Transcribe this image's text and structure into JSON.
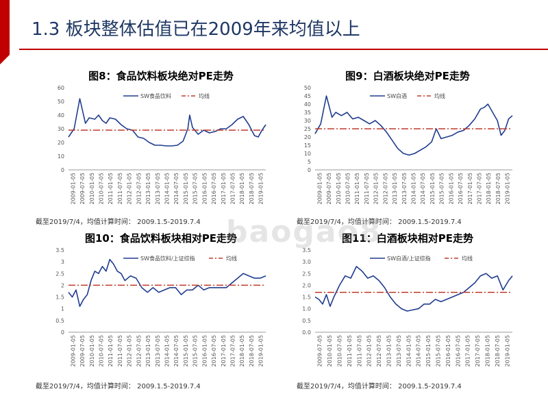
{
  "page": {
    "title": "1.3 板块整体估值已在2009年来均值以上",
    "watermark": "baogao8"
  },
  "chart_data": [
    {
      "type": "line",
      "title": "图8：食品饮料板块绝对PE走势",
      "note": "截至2019/7/4，均值计算时间：   2009.1.5-2019.7.4",
      "ylim": [
        0,
        60
      ],
      "yticks": [
        0,
        10,
        20,
        30,
        40,
        50,
        60
      ],
      "xlabels": [
        "2009-01-05",
        "2009-07-05",
        "2010-01-05",
        "2010-07-05",
        "2011-01-05",
        "2011-07-05",
        "2012-01-05",
        "2012-07-05",
        "2013-01-05",
        "2013-07-05",
        "2014-01-05",
        "2014-07-05",
        "2015-01-05",
        "2015-07-05",
        "2016-01-05",
        "2016-07-05",
        "2017-01-05",
        "2017-07-05",
        "2018-01-05",
        "2018-07-05",
        "2019-01-05"
      ],
      "legend": "top-center",
      "series": [
        {
          "name": "SW食品饮料",
          "x": [
            2009.0,
            2009.3,
            2009.6,
            2009.9,
            2010.1,
            2010.4,
            2010.6,
            2010.8,
            2011.0,
            2011.2,
            2011.5,
            2011.8,
            2012.1,
            2012.4,
            2012.7,
            2013.0,
            2013.3,
            2013.6,
            2013.9,
            2014.2,
            2014.5,
            2014.8,
            2015.1,
            2015.35,
            2015.45,
            2015.6,
            2015.9,
            2016.2,
            2016.5,
            2016.8,
            2017.1,
            2017.4,
            2017.7,
            2018.0,
            2018.3,
            2018.6,
            2018.9,
            2019.1,
            2019.3,
            2019.5
          ],
          "values": [
            24,
            30,
            52,
            34,
            38,
            37,
            40,
            36,
            34,
            38,
            37,
            33,
            30,
            29,
            24,
            23,
            20,
            18,
            18,
            17.5,
            17.5,
            18,
            21,
            30,
            40,
            31,
            26,
            29,
            27,
            28,
            30,
            30,
            33,
            37,
            39,
            33,
            25,
            24,
            29,
            33
          ]
        },
        {
          "name": "均线",
          "x": [
            2009.0,
            2019.5
          ],
          "values": [
            29,
            29
          ]
        }
      ]
    },
    {
      "type": "line",
      "title": "图9：白酒板块绝对PE走势",
      "note": "截至2019/7/4，均值计算时间：   2009.1.5-2019.7.4",
      "ylim": [
        0,
        50
      ],
      "yticks": [
        0,
        5,
        10,
        15,
        20,
        25,
        30,
        35,
        40,
        45,
        50
      ],
      "xlabels": [
        "2009-01-05",
        "2009-07-05",
        "2010-01-05",
        "2010-07-05",
        "2011-01-05",
        "2011-07-05",
        "2012-01-05",
        "2012-07-05",
        "2013-01-05",
        "2013-07-05",
        "2014-01-05",
        "2014-07-05",
        "2015-01-05",
        "2015-07-05",
        "2016-01-05",
        "2016-07-05",
        "2017-01-05",
        "2017-07-05",
        "2018-01-05",
        "2018-07-05",
        "2019-01-05"
      ],
      "legend": "top-center",
      "series": [
        {
          "name": "SW白酒",
          "x": [
            2009.0,
            2009.3,
            2009.6,
            2009.9,
            2010.1,
            2010.4,
            2010.7,
            2011.0,
            2011.3,
            2011.6,
            2011.9,
            2012.2,
            2012.5,
            2012.8,
            2013.1,
            2013.4,
            2013.7,
            2014.0,
            2014.3,
            2014.6,
            2014.9,
            2015.2,
            2015.45,
            2015.7,
            2016.0,
            2016.3,
            2016.6,
            2016.9,
            2017.2,
            2017.5,
            2017.8,
            2018.0,
            2018.2,
            2018.4,
            2018.7,
            2018.9,
            2019.1,
            2019.3,
            2019.5
          ],
          "values": [
            22,
            28,
            45,
            32,
            35,
            33,
            35,
            31,
            32,
            30,
            28,
            30,
            27,
            23,
            18,
            13,
            10,
            9,
            10,
            12,
            14,
            17,
            25,
            19,
            20,
            21,
            23,
            24,
            27,
            31,
            37,
            38,
            40,
            36,
            30,
            21,
            24,
            31,
            33
          ]
        },
        {
          "name": "均线",
          "x": [
            2009.0,
            2019.5
          ],
          "values": [
            25,
            25
          ]
        }
      ]
    },
    {
      "type": "line",
      "title": "图10：食品饮料板块相对PE走势",
      "note": "截至2019/7/4，均值计算时间：   2009.1.5-2019.7.4",
      "ylim": [
        0,
        3.5
      ],
      "yticks": [
        0,
        0.5,
        1,
        1.5,
        2,
        2.5,
        3,
        3.5
      ],
      "ytick_labels": [
        "0",
        "0.5",
        "1",
        "1.5",
        "2",
        "2.5",
        "3",
        "3.5"
      ],
      "xlabels": [
        "2009-01-05",
        "2009-07-05",
        "2010-01-05",
        "2010-07-05",
        "2011-01-05",
        "2011-07-05",
        "2012-01-05",
        "2012-07-05",
        "2013-01-05",
        "2013-07-05",
        "2014-01-05",
        "2014-07-05",
        "2015-01-05",
        "2015-07-05",
        "2016-01-05",
        "2016-07-05",
        "2017-01-05",
        "2017-07-05",
        "2018-01-05",
        "2018-07-05",
        "2019-01-05"
      ],
      "legend": "top-center",
      "series": [
        {
          "name": "SW食品饮料/上证综指",
          "x": [
            2009.0,
            2009.2,
            2009.4,
            2009.6,
            2009.8,
            2010.0,
            2010.2,
            2010.4,
            2010.6,
            2010.8,
            2011.0,
            2011.2,
            2011.4,
            2011.6,
            2011.8,
            2012.0,
            2012.3,
            2012.6,
            2012.9,
            2013.2,
            2013.5,
            2013.8,
            2014.1,
            2014.4,
            2014.7,
            2015.0,
            2015.3,
            2015.6,
            2015.9,
            2016.2,
            2016.5,
            2016.8,
            2017.1,
            2017.4,
            2017.7,
            2018.0,
            2018.3,
            2018.6,
            2018.9,
            2019.2,
            2019.5
          ],
          "values": [
            1.7,
            1.5,
            1.8,
            1.1,
            1.4,
            1.6,
            2.2,
            2.6,
            2.5,
            2.8,
            2.6,
            3.1,
            2.9,
            2.6,
            2.5,
            2.2,
            2.4,
            2.3,
            1.9,
            1.7,
            1.9,
            1.7,
            1.8,
            1.9,
            1.9,
            1.6,
            1.8,
            1.8,
            2.0,
            1.8,
            1.9,
            1.9,
            1.9,
            1.9,
            2.1,
            2.3,
            2.5,
            2.4,
            2.3,
            2.3,
            2.4
          ]
        },
        {
          "name": "均线",
          "x": [
            2009.0,
            2019.5
          ],
          "values": [
            2.0,
            2.0
          ]
        }
      ]
    },
    {
      "type": "line",
      "title": "图11：白酒板块相对PE走势",
      "note": "截至2019/7/4，均值计算时间：   2009.1.5-2019.7.4",
      "ylim": [
        0,
        3.5
      ],
      "yticks": [
        0,
        0.5,
        1,
        1.5,
        2,
        2.5,
        3,
        3.5
      ],
      "ytick_labels": [
        "0.0",
        "0.5",
        "1.0",
        "1.5",
        "2.0",
        "2.5",
        "3.0",
        "3.5"
      ],
      "xlabels": [
        "2009-07-05",
        "2010-01-05",
        "2010-07-05",
        "2011-01-05",
        "2011-07-05",
        "2012-01-05",
        "2012-07-05",
        "2013-01-05",
        "2013-07-05",
        "2014-01-05",
        "2014-07-05",
        "2015-01-05",
        "2015-07-05",
        "2016-01-05",
        "2016-07-05",
        "2017-01-05",
        "2017-07-05",
        "2018-01-05",
        "2018-07-05",
        "2019-01-05"
      ],
      "legend": "top-center",
      "series": [
        {
          "name": "SW白酒/上证综指",
          "x": [
            2009.0,
            2009.2,
            2009.4,
            2009.6,
            2009.8,
            2010.0,
            2010.3,
            2010.6,
            2010.9,
            2011.2,
            2011.5,
            2011.8,
            2012.1,
            2012.4,
            2012.7,
            2013.0,
            2013.3,
            2013.6,
            2013.9,
            2014.2,
            2014.5,
            2014.8,
            2015.1,
            2015.4,
            2015.7,
            2016.0,
            2016.3,
            2016.6,
            2016.9,
            2017.2,
            2017.5,
            2017.8,
            2018.1,
            2018.4,
            2018.7,
            2019.0,
            2019.3,
            2019.5
          ],
          "values": [
            1.5,
            1.4,
            1.2,
            1.6,
            1.1,
            1.5,
            2.0,
            2.4,
            2.3,
            2.8,
            2.6,
            2.3,
            2.4,
            2.2,
            1.9,
            1.5,
            1.2,
            1.0,
            0.9,
            0.95,
            1.0,
            1.2,
            1.2,
            1.4,
            1.3,
            1.4,
            1.5,
            1.6,
            1.7,
            1.9,
            2.1,
            2.4,
            2.5,
            2.3,
            2.4,
            1.8,
            2.2,
            2.4
          ]
        },
        {
          "name": "均线",
          "x": [
            2009.0,
            2019.5
          ],
          "values": [
            1.7,
            1.7
          ]
        }
      ]
    }
  ]
}
